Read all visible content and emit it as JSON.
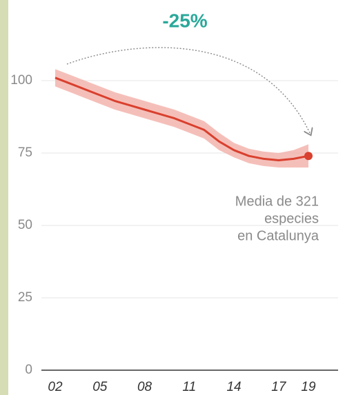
{
  "chart_data": {
    "type": "line",
    "title": "-25%",
    "annotation": [
      "Media de 321",
      "especies",
      "en Catalunya"
    ],
    "x": [
      2,
      3,
      4,
      5,
      6,
      7,
      8,
      9,
      10,
      11,
      12,
      13,
      14,
      15,
      16,
      17,
      18,
      19
    ],
    "series": [
      {
        "name": "Media",
        "color": "#d9402e",
        "values": [
          101,
          99,
          97,
          95,
          93,
          91.5,
          90,
          88.5,
          87,
          85,
          83,
          79,
          76,
          74,
          73,
          72.5,
          73,
          74
        ],
        "upper": [
          104,
          102,
          100,
          98,
          96,
          94.5,
          93,
          91.5,
          90,
          88,
          86,
          82,
          78.5,
          76.5,
          75.5,
          75,
          76,
          78
        ],
        "lower": [
          98,
          96,
          94,
          92,
          90,
          88.5,
          87,
          85.5,
          84,
          82,
          80,
          76,
          73.5,
          71.5,
          70.5,
          70,
          70,
          70
        ]
      }
    ],
    "band_color": "#f2aaa2",
    "xlim": [
      0.4,
      20.6
    ],
    "ylim": [
      0,
      100
    ],
    "xticks": [
      {
        "value": 2,
        "label": "02"
      },
      {
        "value": 5,
        "label": "05"
      },
      {
        "value": 8,
        "label": "08"
      },
      {
        "value": 11,
        "label": "11"
      },
      {
        "value": 14,
        "label": "14"
      },
      {
        "value": 17,
        "label": "17"
      },
      {
        "value": 19,
        "label": "19"
      }
    ],
    "yticks": [
      0,
      25,
      50,
      75,
      100
    ],
    "grid": true
  }
}
